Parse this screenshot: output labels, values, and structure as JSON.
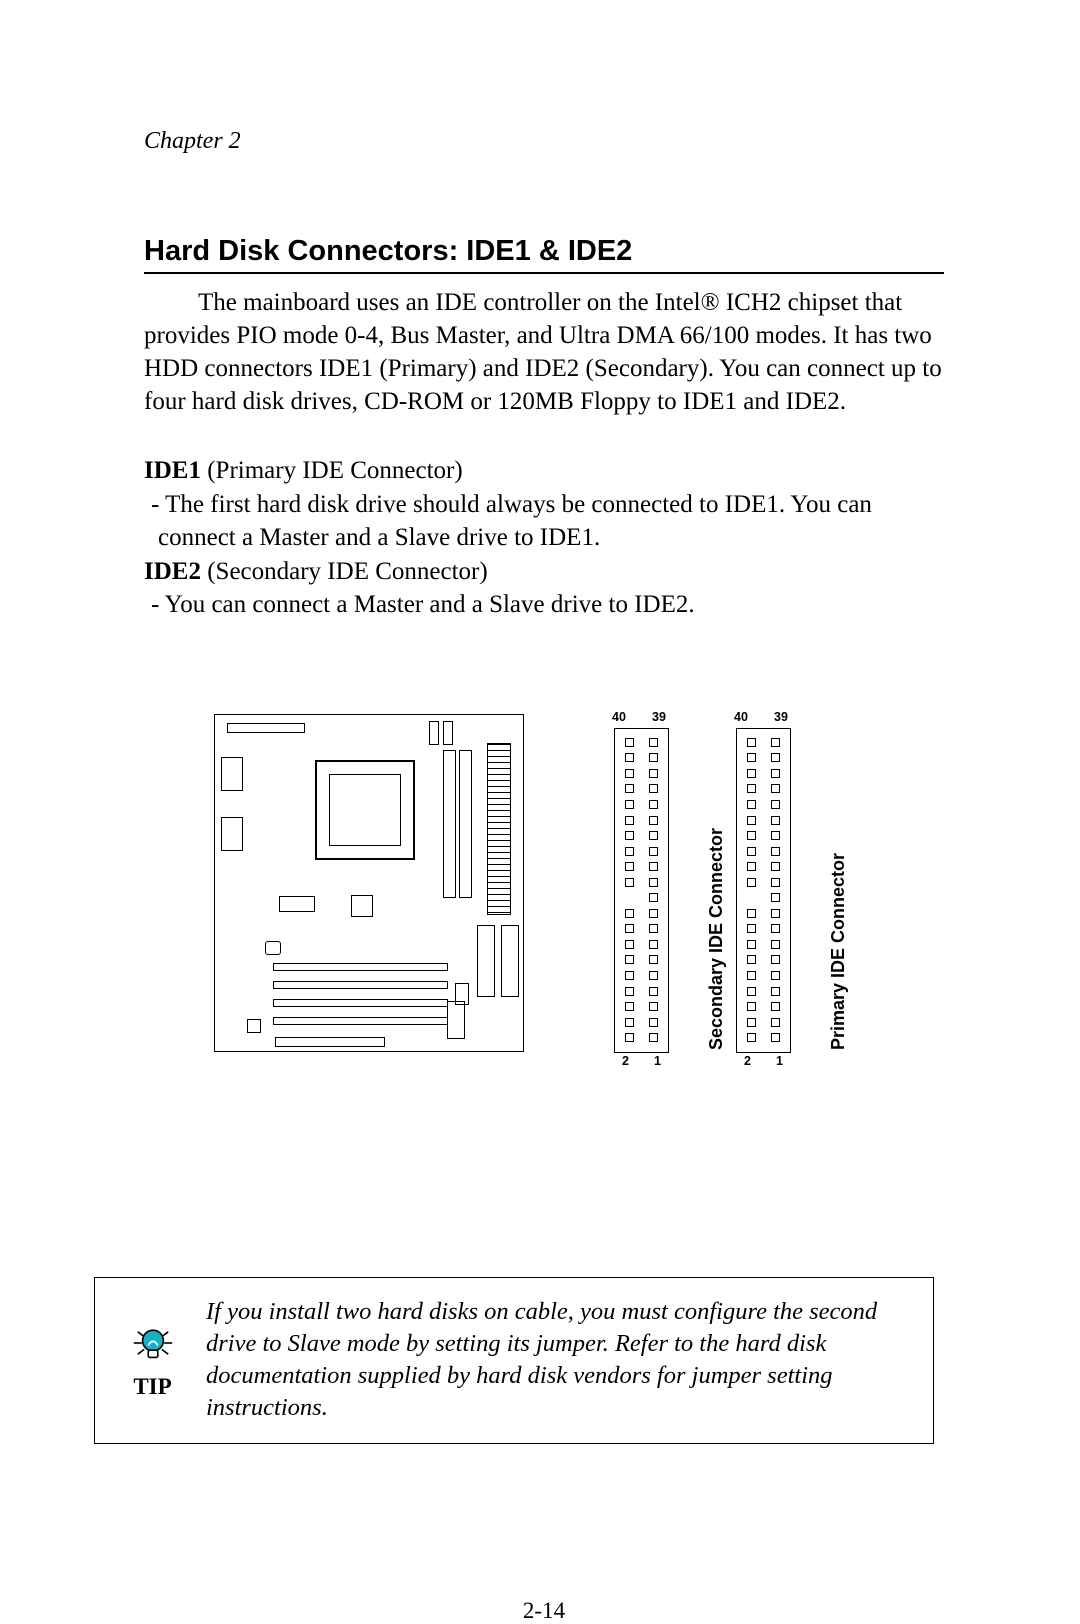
{
  "chapter": "Chapter 2",
  "section_title": "Hard Disk Connectors: IDE1 & IDE2",
  "intro": "The mainboard uses an IDE controller on the Intel® ICH2 chipset that provides PIO mode 0-4, Bus Master, and Ultra DMA 66/100 modes.  It has two HDD connectors IDE1 (Primary) and IDE2 (Secondary).  You can connect up to four hard disk drives, CD-ROM or 120MB Floppy to IDE1 and IDE2.",
  "defs": {
    "ide1_label": "IDE1",
    "ide1_paren": " (Primary IDE Connector)",
    "ide1_detail": " - The first hard disk drive should always be connected to IDE1.  You can connect a Master and a Slave drive to IDE1.",
    "ide2_label": "IDE2",
    "ide2_paren": " (Secondary IDE Connector)",
    "ide2_detail": " - You can connect a Master and a Slave drive to IDE2."
  },
  "connectors": {
    "pin_count_rows": 20,
    "blank_pin_index": 19,
    "labels": {
      "top_left": "40",
      "top_right": "39",
      "bottom_left": "2",
      "bottom_right": "1"
    },
    "secondary_label": "Secondary  IDE  Connector",
    "primary_label": "Primary IDE Connector"
  },
  "tip": {
    "label": "TIP",
    "text": "If you install two hard disks on cable, you must configure the second drive to Slave mode by setting its jumper.  Refer to the hard disk documentation supplied by hard disk vendors for jumper setting instructions.",
    "bulb_fill": "#17b0c4",
    "ray_color": "#000000"
  },
  "page_number": "2-14",
  "colors": {
    "text": "#000000",
    "background": "#ffffff",
    "rule": "#000000"
  },
  "typography": {
    "body_family": "Times New Roman",
    "heading_family": "Arial",
    "body_size_pt": 19,
    "heading_size_pt": 22,
    "label_size_pt": 9
  }
}
